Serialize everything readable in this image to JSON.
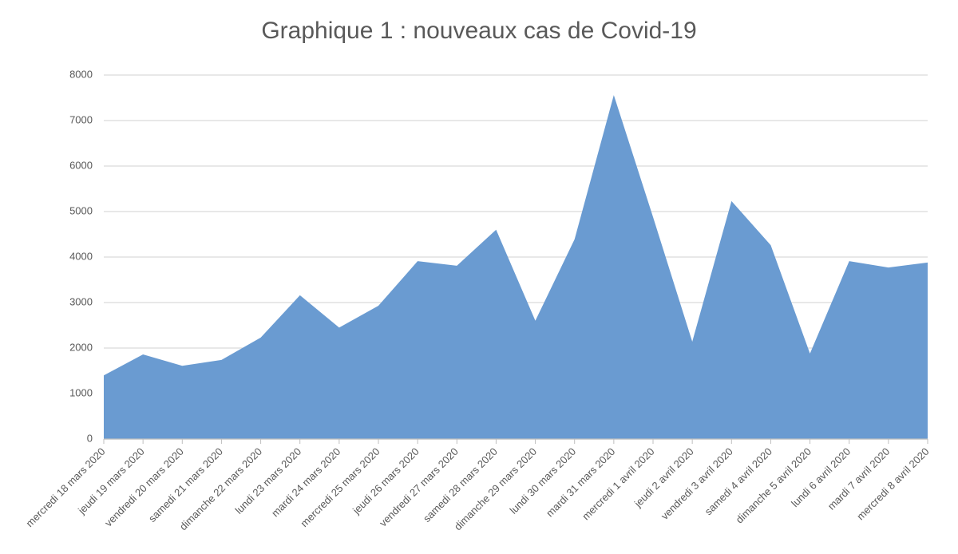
{
  "chart_data": {
    "type": "area",
    "title": "Graphique 1 : nouveaux cas de Covid-19",
    "categories": [
      "mercredi 18 mars 2020",
      "jeudi 19 mars 2020",
      "vendredi 20 mars 2020",
      "samedi 21 mars 2020",
      "dimanche 22 mars 2020",
      "lundi 23 mars 2020",
      "mardi 24 mars 2020",
      "mercredi 25 mars 2020",
      "jeudi 26 mars 2020",
      "vendredi 27 mars 2020",
      "samedi 28 mars 2020",
      "dimanche 29 mars 2020",
      "lundi 30 mars 2020",
      "mardi 31 mars 2020",
      "mercredi 1 avril 2020",
      "jeudi 2 avril 2020",
      "vendredi 3 avril 2020",
      "samedi 4 avril 2020",
      "dimanche 5 avril 2020",
      "lundi 6 avril 2020",
      "mardi 7 avril 2020",
      "mercredi 8 avril 2020"
    ],
    "values": [
      1400,
      1860,
      1610,
      1740,
      2230,
      3160,
      2450,
      2930,
      3910,
      3810,
      4600,
      2600,
      4390,
      7560,
      4880,
      2140,
      5230,
      4260,
      1880,
      3910,
      3770,
      3880
    ],
    "color": "#6a9bd1",
    "ylim": [
      0,
      8000
    ],
    "yticks": [
      0,
      1000,
      2000,
      3000,
      4000,
      5000,
      6000,
      7000,
      8000
    ],
    "grid": true
  }
}
